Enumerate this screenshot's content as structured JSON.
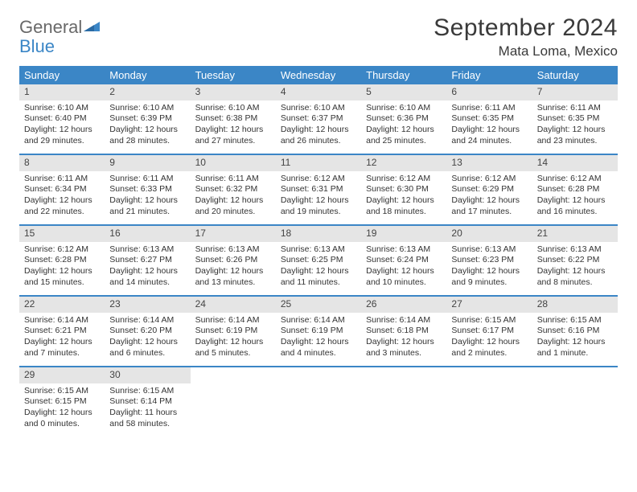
{
  "logo": {
    "word1": "General",
    "word2": "Blue"
  },
  "title": "September 2024",
  "location": "Mata Loma, Mexico",
  "colors": {
    "accent": "#3b86c6",
    "daynum_bg": "#e5e5e5",
    "text": "#333333",
    "logo_gray": "#696969"
  },
  "days_of_week": [
    "Sunday",
    "Monday",
    "Tuesday",
    "Wednesday",
    "Thursday",
    "Friday",
    "Saturday"
  ],
  "weeks": [
    [
      {
        "n": "1",
        "sr": "Sunrise: 6:10 AM",
        "ss": "Sunset: 6:40 PM",
        "dl": "Daylight: 12 hours and 29 minutes."
      },
      {
        "n": "2",
        "sr": "Sunrise: 6:10 AM",
        "ss": "Sunset: 6:39 PM",
        "dl": "Daylight: 12 hours and 28 minutes."
      },
      {
        "n": "3",
        "sr": "Sunrise: 6:10 AM",
        "ss": "Sunset: 6:38 PM",
        "dl": "Daylight: 12 hours and 27 minutes."
      },
      {
        "n": "4",
        "sr": "Sunrise: 6:10 AM",
        "ss": "Sunset: 6:37 PM",
        "dl": "Daylight: 12 hours and 26 minutes."
      },
      {
        "n": "5",
        "sr": "Sunrise: 6:10 AM",
        "ss": "Sunset: 6:36 PM",
        "dl": "Daylight: 12 hours and 25 minutes."
      },
      {
        "n": "6",
        "sr": "Sunrise: 6:11 AM",
        "ss": "Sunset: 6:35 PM",
        "dl": "Daylight: 12 hours and 24 minutes."
      },
      {
        "n": "7",
        "sr": "Sunrise: 6:11 AM",
        "ss": "Sunset: 6:35 PM",
        "dl": "Daylight: 12 hours and 23 minutes."
      }
    ],
    [
      {
        "n": "8",
        "sr": "Sunrise: 6:11 AM",
        "ss": "Sunset: 6:34 PM",
        "dl": "Daylight: 12 hours and 22 minutes."
      },
      {
        "n": "9",
        "sr": "Sunrise: 6:11 AM",
        "ss": "Sunset: 6:33 PM",
        "dl": "Daylight: 12 hours and 21 minutes."
      },
      {
        "n": "10",
        "sr": "Sunrise: 6:11 AM",
        "ss": "Sunset: 6:32 PM",
        "dl": "Daylight: 12 hours and 20 minutes."
      },
      {
        "n": "11",
        "sr": "Sunrise: 6:12 AM",
        "ss": "Sunset: 6:31 PM",
        "dl": "Daylight: 12 hours and 19 minutes."
      },
      {
        "n": "12",
        "sr": "Sunrise: 6:12 AM",
        "ss": "Sunset: 6:30 PM",
        "dl": "Daylight: 12 hours and 18 minutes."
      },
      {
        "n": "13",
        "sr": "Sunrise: 6:12 AM",
        "ss": "Sunset: 6:29 PM",
        "dl": "Daylight: 12 hours and 17 minutes."
      },
      {
        "n": "14",
        "sr": "Sunrise: 6:12 AM",
        "ss": "Sunset: 6:28 PM",
        "dl": "Daylight: 12 hours and 16 minutes."
      }
    ],
    [
      {
        "n": "15",
        "sr": "Sunrise: 6:12 AM",
        "ss": "Sunset: 6:28 PM",
        "dl": "Daylight: 12 hours and 15 minutes."
      },
      {
        "n": "16",
        "sr": "Sunrise: 6:13 AM",
        "ss": "Sunset: 6:27 PM",
        "dl": "Daylight: 12 hours and 14 minutes."
      },
      {
        "n": "17",
        "sr": "Sunrise: 6:13 AM",
        "ss": "Sunset: 6:26 PM",
        "dl": "Daylight: 12 hours and 13 minutes."
      },
      {
        "n": "18",
        "sr": "Sunrise: 6:13 AM",
        "ss": "Sunset: 6:25 PM",
        "dl": "Daylight: 12 hours and 11 minutes."
      },
      {
        "n": "19",
        "sr": "Sunrise: 6:13 AM",
        "ss": "Sunset: 6:24 PM",
        "dl": "Daylight: 12 hours and 10 minutes."
      },
      {
        "n": "20",
        "sr": "Sunrise: 6:13 AM",
        "ss": "Sunset: 6:23 PM",
        "dl": "Daylight: 12 hours and 9 minutes."
      },
      {
        "n": "21",
        "sr": "Sunrise: 6:13 AM",
        "ss": "Sunset: 6:22 PM",
        "dl": "Daylight: 12 hours and 8 minutes."
      }
    ],
    [
      {
        "n": "22",
        "sr": "Sunrise: 6:14 AM",
        "ss": "Sunset: 6:21 PM",
        "dl": "Daylight: 12 hours and 7 minutes."
      },
      {
        "n": "23",
        "sr": "Sunrise: 6:14 AM",
        "ss": "Sunset: 6:20 PM",
        "dl": "Daylight: 12 hours and 6 minutes."
      },
      {
        "n": "24",
        "sr": "Sunrise: 6:14 AM",
        "ss": "Sunset: 6:19 PM",
        "dl": "Daylight: 12 hours and 5 minutes."
      },
      {
        "n": "25",
        "sr": "Sunrise: 6:14 AM",
        "ss": "Sunset: 6:19 PM",
        "dl": "Daylight: 12 hours and 4 minutes."
      },
      {
        "n": "26",
        "sr": "Sunrise: 6:14 AM",
        "ss": "Sunset: 6:18 PM",
        "dl": "Daylight: 12 hours and 3 minutes."
      },
      {
        "n": "27",
        "sr": "Sunrise: 6:15 AM",
        "ss": "Sunset: 6:17 PM",
        "dl": "Daylight: 12 hours and 2 minutes."
      },
      {
        "n": "28",
        "sr": "Sunrise: 6:15 AM",
        "ss": "Sunset: 6:16 PM",
        "dl": "Daylight: 12 hours and 1 minute."
      }
    ],
    [
      {
        "n": "29",
        "sr": "Sunrise: 6:15 AM",
        "ss": "Sunset: 6:15 PM",
        "dl": "Daylight: 12 hours and 0 minutes."
      },
      {
        "n": "30",
        "sr": "Sunrise: 6:15 AM",
        "ss": "Sunset: 6:14 PM",
        "dl": "Daylight: 11 hours and 58 minutes."
      },
      null,
      null,
      null,
      null,
      null
    ]
  ]
}
